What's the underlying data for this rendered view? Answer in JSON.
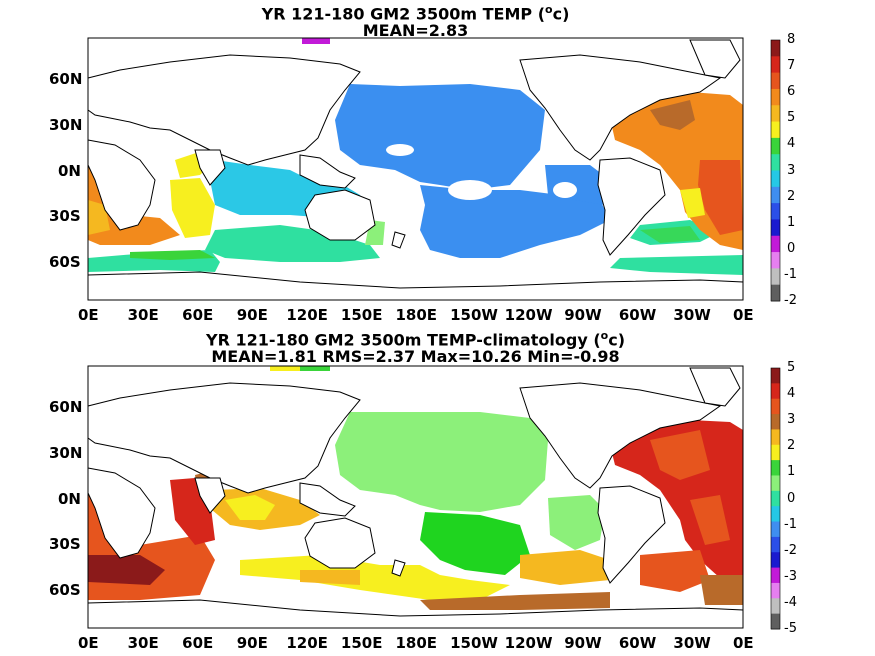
{
  "panels": [
    {
      "title_line1_pre": "YR 121-180 GM2 3500m TEMP (",
      "title_line1_sup": "o",
      "title_line1_post": "c)",
      "title_line2": "MEAN=2.83",
      "colorbar_ticks": [
        "8",
        "7",
        "6",
        "5",
        "4",
        "3",
        "2",
        "1",
        "0",
        "-1",
        "-2"
      ],
      "colorbar_colors": [
        "#8b1a1a",
        "#d6261b",
        "#e6551e",
        "#f28a1c",
        "#f5b820",
        "#f7ef1f",
        "#3ad43a",
        "#2fe0a0",
        "#25c8e6",
        "#3f8ef0",
        "#2b4fe8",
        "#1a1acf",
        "#c21ad8",
        "#e67ff0",
        "#bfbfbf",
        "#5f5f5f"
      ]
    },
    {
      "title_line1_pre": "YR 121-180 GM2 3500m TEMP-climatology (",
      "title_line1_sup": "o",
      "title_line1_post": "c)",
      "title_line2": "MEAN=1.81   RMS=2.37   Max=10.26   Min=-0.98",
      "colorbar_ticks": [
        "5",
        "4",
        "3",
        "2",
        "1",
        "0",
        "-1",
        "-2",
        "-3",
        "-4",
        "-5"
      ],
      "colorbar_colors": [
        "#8b1a1a",
        "#d6261b",
        "#e6551e",
        "#b86a2a",
        "#f5b820",
        "#f7ef1f",
        "#3ad43a",
        "#8cf07a",
        "#2fe0a0",
        "#25c8e6",
        "#3f8ef0",
        "#2b4fe8",
        "#1a1acf",
        "#c21ad8",
        "#e67ff0",
        "#bfbfbf",
        "#5f5f5f"
      ]
    }
  ],
  "lat_labels": [
    "60N",
    "30N",
    "0N",
    "30S",
    "60S"
  ],
  "lon_labels": [
    "0E",
    "30E",
    "60E",
    "90E",
    "120E",
    "150E",
    "180E",
    "150W",
    "120W",
    "90W",
    "60W",
    "30W",
    "0E"
  ]
}
